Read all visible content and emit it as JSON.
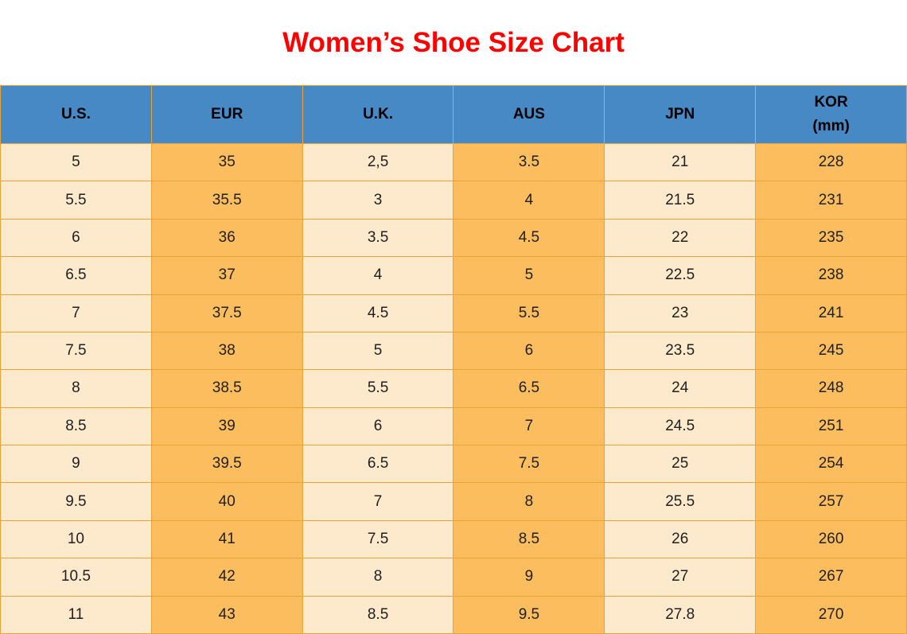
{
  "page": {
    "title": "Women’s Shoe Size Chart"
  },
  "colors": {
    "title": "#ff0000",
    "header_bg": "#4689c4",
    "column_cream": "#fdeacc",
    "column_orange": "#fbbd5e",
    "border": "#e8a33c",
    "cell_text": "#1f1f1f"
  },
  "table": {
    "header": [
      {
        "key": "us",
        "lines": [
          "U.S."
        ]
      },
      {
        "key": "eur",
        "lines": [
          "EUR"
        ]
      },
      {
        "key": "uk",
        "lines": [
          "U.K."
        ]
      },
      {
        "key": "aus",
        "lines": [
          "AUS"
        ]
      },
      {
        "key": "jpn",
        "lines": [
          "JPN"
        ]
      },
      {
        "key": "kor",
        "lines": [
          "KOR",
          "(mm)"
        ]
      }
    ]
  },
  "chart_data": {
    "type": "table",
    "title": "Women’s Shoe Size Chart",
    "columns": [
      "U.S.",
      "EUR",
      "U.K.",
      "AUS",
      "JPN",
      "KOR (mm)"
    ],
    "rows": [
      [
        "5",
        "35",
        "2,5",
        "3.5",
        "21",
        "228"
      ],
      [
        "5.5",
        "35.5",
        "3",
        "4",
        "21.5",
        "231"
      ],
      [
        "6",
        "36",
        "3.5",
        "4.5",
        "22",
        "235"
      ],
      [
        "6.5",
        "37",
        "4",
        "5",
        "22.5",
        "238"
      ],
      [
        "7",
        "37.5",
        "4.5",
        "5.5",
        "23",
        "241"
      ],
      [
        "7.5",
        "38",
        "5",
        "6",
        "23.5",
        "245"
      ],
      [
        "8",
        "38.5",
        "5.5",
        "6.5",
        "24",
        "248"
      ],
      [
        "8.5",
        "39",
        "6",
        "7",
        "24.5",
        "251"
      ],
      [
        "9",
        "39.5",
        "6.5",
        "7.5",
        "25",
        "254"
      ],
      [
        "9.5",
        "40",
        "7",
        "8",
        "25.5",
        "257"
      ],
      [
        "10",
        "41",
        "7.5",
        "8.5",
        "26",
        "260"
      ],
      [
        "10.5",
        "42",
        "8",
        "9",
        "27",
        "267"
      ],
      [
        "11",
        "43",
        "8.5",
        "9.5",
        "27.8",
        "270"
      ]
    ]
  }
}
